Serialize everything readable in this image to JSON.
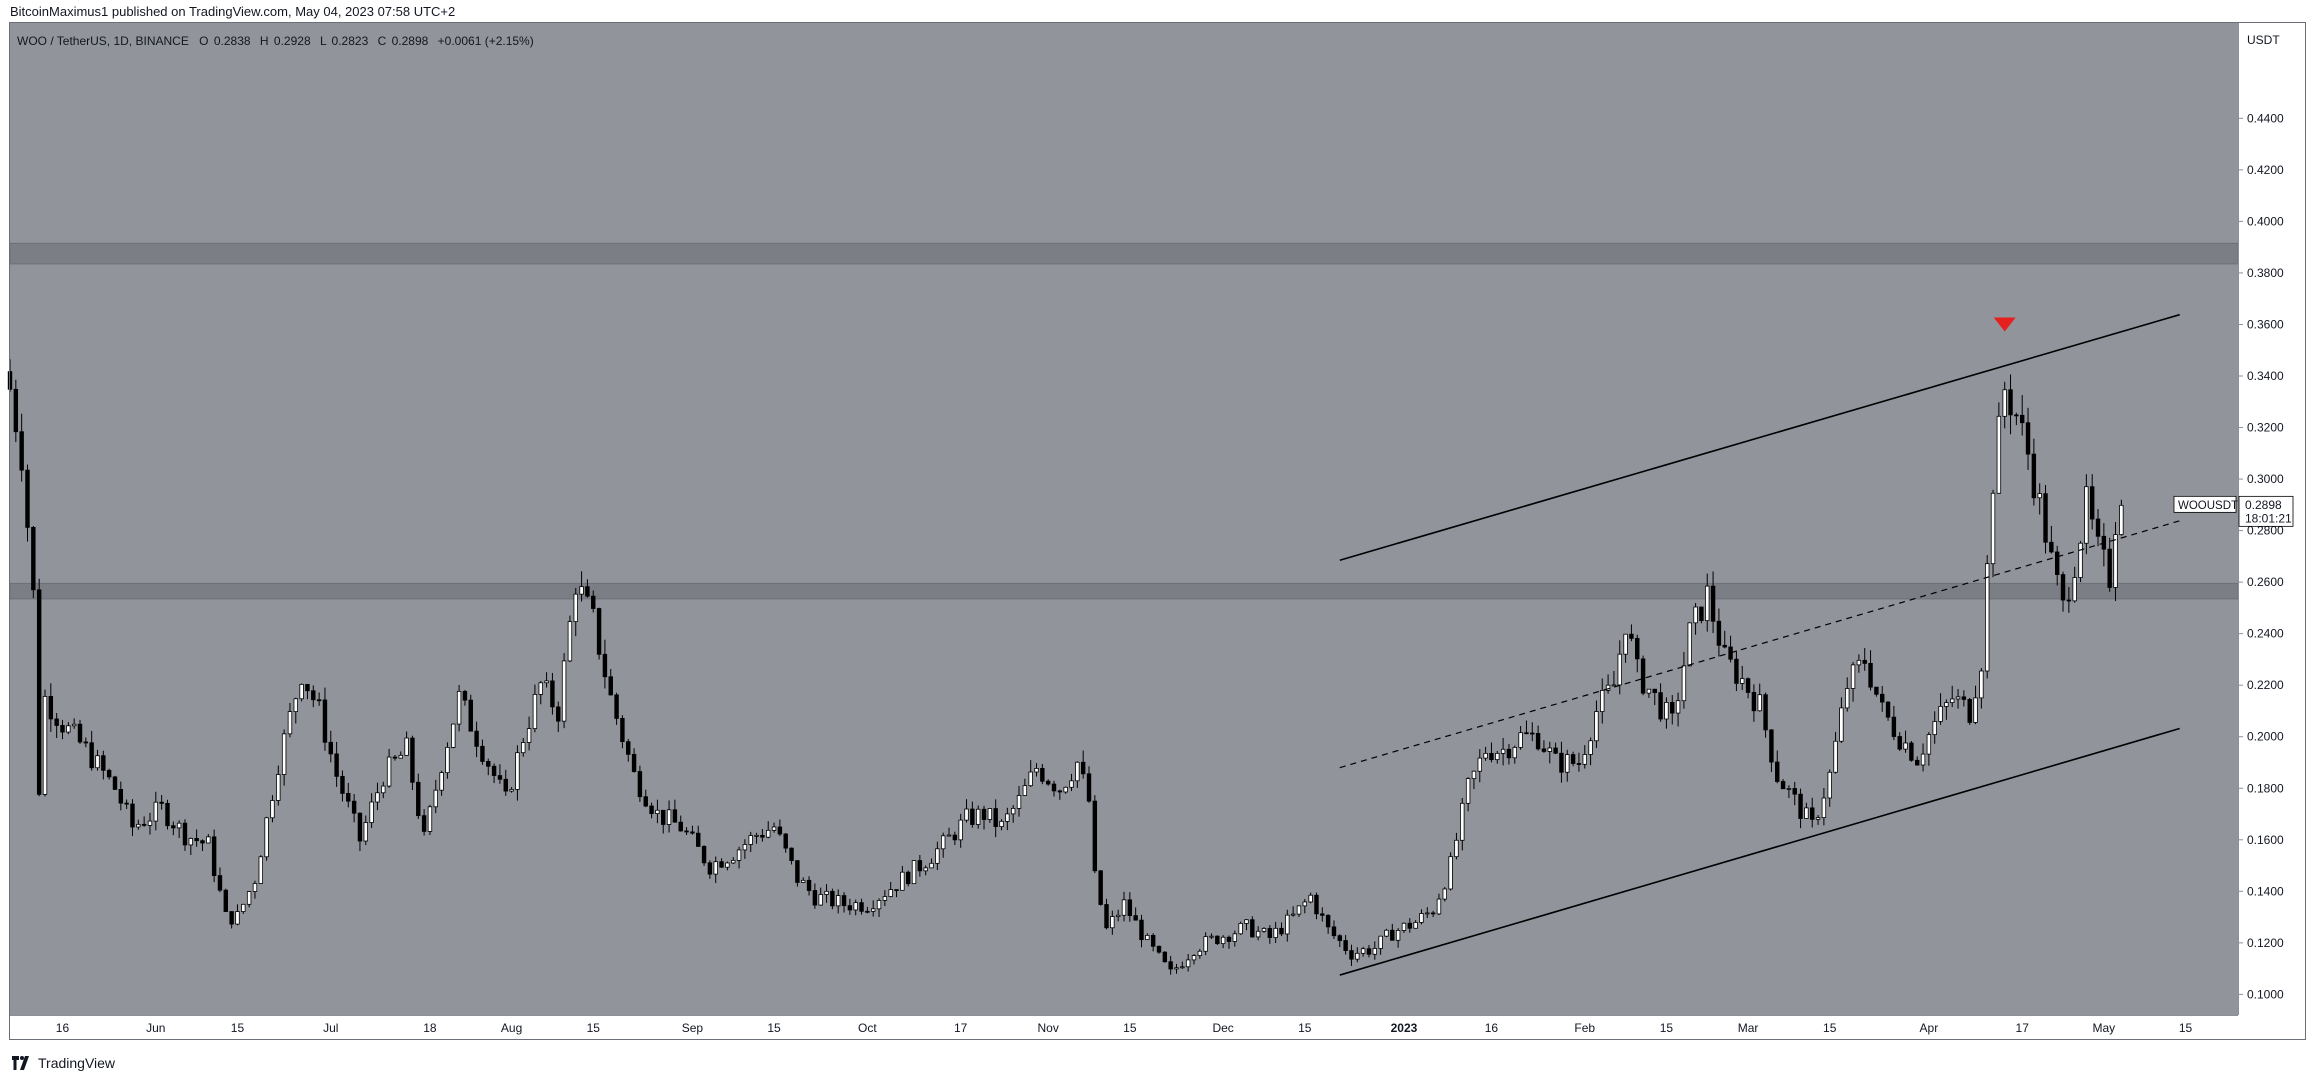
{
  "header": {
    "published": "BitcoinMaximus1 published on TradingView.com, May 04, 2023 07:58 UTC+2"
  },
  "footer": {
    "brand": "TradingView",
    "logo_icon": "tradingview-logo-icon"
  },
  "colors": {
    "plot_bg": "#92949c",
    "zone": "#7c7e86",
    "candle_up": "#ffffff",
    "candle_down": "#000000",
    "marker": "#e5201f",
    "axis_bg": "#ffffff"
  },
  "chart_data": {
    "type": "candlestick",
    "legend": {
      "symbol": "WOO / TetherUS, 1D, BINANCE",
      "o_label": "O",
      "o_value": "0.2838",
      "h_label": "H",
      "h_value": "0.2928",
      "l_label": "L",
      "l_value": "0.2823",
      "c_label": "C",
      "c_value": "0.2898",
      "change": "+0.0061 (+2.15%)"
    },
    "y_axis": {
      "unit": "USDT",
      "range": [
        0.092,
        0.477
      ],
      "ticks": [
        "0.4400",
        "0.4200",
        "0.4000",
        "0.3800",
        "0.3600",
        "0.3400",
        "0.3200",
        "0.3000",
        "0.2800",
        "0.2600",
        "0.2400",
        "0.2200",
        "0.2000",
        "0.1800",
        "0.1600",
        "0.1400",
        "0.1200",
        "0.1000"
      ]
    },
    "x_axis": {
      "start_date": "2022-05-07",
      "end_date": "2023-05-24",
      "ticks": [
        {
          "date": "2022-05-16",
          "label": "16"
        },
        {
          "date": "2022-06-01",
          "label": "Jun"
        },
        {
          "date": "2022-06-15",
          "label": "15"
        },
        {
          "date": "2022-07-01",
          "label": "Jul"
        },
        {
          "date": "2022-07-18",
          "label": "18"
        },
        {
          "date": "2022-08-01",
          "label": "Aug"
        },
        {
          "date": "2022-08-15",
          "label": "15"
        },
        {
          "date": "2022-09-01",
          "label": "Sep"
        },
        {
          "date": "2022-09-15",
          "label": "15"
        },
        {
          "date": "2022-10-01",
          "label": "Oct"
        },
        {
          "date": "2022-10-17",
          "label": "17"
        },
        {
          "date": "2022-11-01",
          "label": "Nov"
        },
        {
          "date": "2022-11-15",
          "label": "15"
        },
        {
          "date": "2022-12-01",
          "label": "Dec"
        },
        {
          "date": "2022-12-15",
          "label": "15"
        },
        {
          "date": "2023-01-01",
          "label": "2023"
        },
        {
          "date": "2023-01-16",
          "label": "16"
        },
        {
          "date": "2023-02-01",
          "label": "Feb"
        },
        {
          "date": "2023-02-15",
          "label": "15"
        },
        {
          "date": "2023-03-01",
          "label": "Mar"
        },
        {
          "date": "2023-03-15",
          "label": "15"
        },
        {
          "date": "2023-04-01",
          "label": "Apr"
        },
        {
          "date": "2023-04-17",
          "label": "17"
        },
        {
          "date": "2023-05-01",
          "label": "May"
        },
        {
          "date": "2023-05-15",
          "label": "15"
        }
      ]
    },
    "price_label": {
      "symbol": "WOOUSDT",
      "price": "0.2898",
      "countdown": "18:01:21",
      "value": 0.2898
    },
    "horizontal_zones": [
      {
        "from": 0.3835,
        "to": 0.3915
      },
      {
        "from": 0.2535,
        "to": 0.2595
      }
    ],
    "channel": {
      "upper": [
        {
          "date": "2022-12-21",
          "price": 0.2685
        },
        {
          "date": "2023-05-14",
          "price": 0.3638
        }
      ],
      "middle": [
        {
          "date": "2022-12-21",
          "price": 0.188
        },
        {
          "date": "2023-05-14",
          "price": 0.2838
        }
      ],
      "lower": [
        {
          "date": "2022-12-21",
          "price": 0.1075
        },
        {
          "date": "2023-05-14",
          "price": 0.2032
        }
      ]
    },
    "marker": {
      "date": "2023-04-14",
      "price": 0.36,
      "shape": "triangle-down"
    },
    "price_path": [
      [
        "2022-05-07",
        0.335
      ],
      [
        "2022-05-09",
        0.31
      ],
      [
        "2022-05-11",
        0.255
      ],
      [
        "2022-05-12",
        0.18
      ],
      [
        "2022-05-13",
        0.215
      ],
      [
        "2022-05-16",
        0.205
      ],
      [
        "2022-05-20",
        0.195
      ],
      [
        "2022-05-25",
        0.18
      ],
      [
        "2022-05-28",
        0.165
      ],
      [
        "2022-06-02",
        0.172
      ],
      [
        "2022-06-06",
        0.162
      ],
      [
        "2022-06-10",
        0.158
      ],
      [
        "2022-06-13",
        0.13
      ],
      [
        "2022-06-15",
        0.13
      ],
      [
        "2022-06-18",
        0.145
      ],
      [
        "2022-06-22",
        0.19
      ],
      [
        "2022-06-26",
        0.225
      ],
      [
        "2022-06-29",
        0.21
      ],
      [
        "2022-07-02",
        0.185
      ],
      [
        "2022-07-06",
        0.16
      ],
      [
        "2022-07-10",
        0.185
      ],
      [
        "2022-07-14",
        0.195
      ],
      [
        "2022-07-17",
        0.16
      ],
      [
        "2022-07-20",
        0.19
      ],
      [
        "2022-07-23",
        0.215
      ],
      [
        "2022-07-27",
        0.195
      ],
      [
        "2022-07-31",
        0.175
      ],
      [
        "2022-08-03",
        0.2
      ],
      [
        "2022-08-06",
        0.22
      ],
      [
        "2022-08-09",
        0.21
      ],
      [
        "2022-08-12",
        0.26
      ],
      [
        "2022-08-15",
        0.245
      ],
      [
        "2022-08-18",
        0.215
      ],
      [
        "2022-08-22",
        0.185
      ],
      [
        "2022-08-26",
        0.17
      ],
      [
        "2022-08-30",
        0.165
      ],
      [
        "2022-09-04",
        0.15
      ],
      [
        "2022-09-08",
        0.155
      ],
      [
        "2022-09-12",
        0.162
      ],
      [
        "2022-09-15",
        0.165
      ],
      [
        "2022-09-19",
        0.145
      ],
      [
        "2022-09-22",
        0.138
      ],
      [
        "2022-09-27",
        0.135
      ],
      [
        "2022-10-01",
        0.135
      ],
      [
        "2022-10-06",
        0.143
      ],
      [
        "2022-10-10",
        0.15
      ],
      [
        "2022-10-14",
        0.158
      ],
      [
        "2022-10-18",
        0.168
      ],
      [
        "2022-10-21",
        0.17
      ],
      [
        "2022-10-24",
        0.165
      ],
      [
        "2022-10-27",
        0.175
      ],
      [
        "2022-10-30",
        0.188
      ],
      [
        "2022-11-03",
        0.18
      ],
      [
        "2022-11-06",
        0.19
      ],
      [
        "2022-11-08",
        0.175
      ],
      [
        "2022-11-09",
        0.145
      ],
      [
        "2022-11-11",
        0.125
      ],
      [
        "2022-11-14",
        0.135
      ],
      [
        "2022-11-18",
        0.12
      ],
      [
        "2022-11-22",
        0.108
      ],
      [
        "2022-11-26",
        0.118
      ],
      [
        "2022-11-30",
        0.122
      ],
      [
        "2022-12-05",
        0.126
      ],
      [
        "2022-12-09",
        0.122
      ],
      [
        "2022-12-13",
        0.13
      ],
      [
        "2022-12-16",
        0.138
      ],
      [
        "2022-12-19",
        0.125
      ],
      [
        "2022-12-23",
        0.116
      ],
      [
        "2022-12-27",
        0.118
      ],
      [
        "2022-12-30",
        0.124
      ],
      [
        "2023-01-03",
        0.128
      ],
      [
        "2023-01-06",
        0.133
      ],
      [
        "2023-01-09",
        0.15
      ],
      [
        "2023-01-12",
        0.18
      ],
      [
        "2023-01-15",
        0.195
      ],
      [
        "2023-01-18",
        0.195
      ],
      [
        "2023-01-21",
        0.2
      ],
      [
        "2023-01-24",
        0.2
      ],
      [
        "2023-01-27",
        0.19
      ],
      [
        "2023-01-31",
        0.19
      ],
      [
        "2023-02-03",
        0.21
      ],
      [
        "2023-02-06",
        0.22
      ],
      [
        "2023-02-08",
        0.245
      ],
      [
        "2023-02-10",
        0.225
      ],
      [
        "2023-02-13",
        0.215
      ],
      [
        "2023-02-16",
        0.205
      ],
      [
        "2023-02-19",
        0.24
      ],
      [
        "2023-02-22",
        0.255
      ],
      [
        "2023-02-25",
        0.23
      ],
      [
        "2023-02-28",
        0.222
      ],
      [
        "2023-03-03",
        0.212
      ],
      [
        "2023-03-06",
        0.185
      ],
      [
        "2023-03-09",
        0.175
      ],
      [
        "2023-03-12",
        0.165
      ],
      [
        "2023-03-15",
        0.185
      ],
      [
        "2023-03-18",
        0.22
      ],
      [
        "2023-03-21",
        0.23
      ],
      [
        "2023-03-24",
        0.21
      ],
      [
        "2023-03-27",
        0.2
      ],
      [
        "2023-03-30",
        0.192
      ],
      [
        "2023-04-02",
        0.205
      ],
      [
        "2023-04-05",
        0.215
      ],
      [
        "2023-04-08",
        0.21
      ],
      [
        "2023-04-10",
        0.23
      ],
      [
        "2023-04-12",
        0.3
      ],
      [
        "2023-04-14",
        0.335
      ],
      [
        "2023-04-16",
        0.325
      ],
      [
        "2023-04-18",
        0.31
      ],
      [
        "2023-04-20",
        0.29
      ],
      [
        "2023-04-22",
        0.268
      ],
      [
        "2023-04-24",
        0.25
      ],
      [
        "2023-04-26",
        0.268
      ],
      [
        "2023-04-28",
        0.29
      ],
      [
        "2023-04-30",
        0.272
      ],
      [
        "2023-05-02",
        0.262
      ],
      [
        "2023-05-03",
        0.284
      ],
      [
        "2023-05-04",
        0.2898
      ]
    ]
  }
}
